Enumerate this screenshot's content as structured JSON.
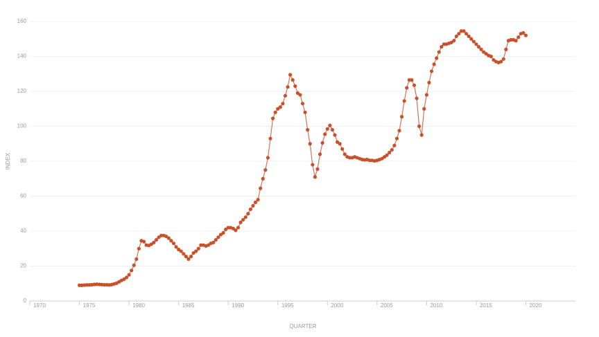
{
  "chart_data": {
    "type": "line",
    "title_x": "QUARTER",
    "ylabel": "INDEX",
    "x": [
      1975,
      1975.25,
      1975.5,
      1975.75,
      1976,
      1976.25,
      1976.5,
      1976.75,
      1977,
      1977.25,
      1977.5,
      1977.75,
      1978,
      1978.25,
      1978.5,
      1978.75,
      1979,
      1979.25,
      1979.5,
      1979.75,
      1980,
      1980.25,
      1980.5,
      1980.75,
      1981,
      1981.25,
      1981.5,
      1981.75,
      1982,
      1982.25,
      1982.5,
      1982.75,
      1983,
      1983.25,
      1983.5,
      1983.75,
      1984,
      1984.25,
      1984.5,
      1984.75,
      1985,
      1985.25,
      1985.5,
      1985.75,
      1986,
      1986.25,
      1986.5,
      1986.75,
      1987,
      1987.25,
      1987.5,
      1987.75,
      1988,
      1988.25,
      1988.5,
      1988.75,
      1989,
      1989.25,
      1989.5,
      1989.75,
      1990,
      1990.25,
      1990.5,
      1990.75,
      1991,
      1991.25,
      1991.5,
      1991.75,
      1992,
      1992.25,
      1992.5,
      1992.75,
      1993,
      1993.25,
      1993.5,
      1993.75,
      1994,
      1994.25,
      1994.5,
      1994.75,
      1995,
      1995.25,
      1995.5,
      1995.75,
      1996,
      1996.25,
      1996.5,
      1996.75,
      1997,
      1997.25,
      1997.5,
      1997.75,
      1998,
      1998.25,
      1998.5,
      1998.75,
      1999,
      1999.25,
      1999.5,
      1999.75,
      2000,
      2000.25,
      2000.5,
      2000.75,
      2001,
      2001.25,
      2001.5,
      2001.75,
      2002,
      2002.25,
      2002.5,
      2002.75,
      2003,
      2003.25,
      2003.5,
      2003.75,
      2004,
      2004.25,
      2004.5,
      2004.75,
      2005,
      2005.25,
      2005.5,
      2005.75,
      2006,
      2006.25,
      2006.5,
      2006.75,
      2007,
      2007.25,
      2007.5,
      2007.75,
      2008,
      2008.25,
      2008.5,
      2008.75,
      2009,
      2009.25,
      2009.5,
      2009.75,
      2010,
      2010.25,
      2010.5,
      2010.75,
      2011,
      2011.25,
      2011.5,
      2011.75,
      2012,
      2012.25,
      2012.5,
      2012.75,
      2013,
      2013.25,
      2013.5,
      2013.75,
      2014,
      2014.25,
      2014.5,
      2014.75,
      2015,
      2015.25,
      2015.5,
      2015.75,
      2016,
      2016.25,
      2016.5,
      2016.75,
      2017,
      2017.25,
      2017.5,
      2017.75,
      2018,
      2018.25,
      2018.5,
      2018.75,
      2019,
      2019.25,
      2019.5,
      2019.75,
      2020
    ],
    "series": [
      {
        "name": "INDEX",
        "color": "#c8502a",
        "values": [
          9,
          9,
          9.1,
          9.2,
          9.2,
          9.3,
          9.5,
          9.6,
          9.5,
          9.4,
          9.3,
          9.3,
          9.2,
          9.4,
          9.8,
          10.2,
          11,
          11.8,
          12.5,
          13.5,
          15,
          17.5,
          20.5,
          24,
          30,
          34.5,
          34,
          32,
          31.8,
          32.5,
          33.5,
          35,
          36.5,
          37.5,
          37.5,
          37,
          36,
          34.5,
          33,
          31,
          29.5,
          28.5,
          27,
          25.5,
          24,
          25.5,
          27.5,
          28.5,
          30,
          32,
          32,
          31.5,
          32,
          33,
          33.5,
          35,
          36.5,
          38,
          39,
          41,
          42,
          42,
          41.5,
          40.5,
          42,
          45,
          46.5,
          48,
          50,
          52.5,
          54.5,
          56.5,
          58,
          64.5,
          70,
          75,
          82,
          93,
          104.5,
          108,
          110,
          111,
          113,
          117.5,
          122.5,
          129.5,
          126.5,
          123,
          119,
          118,
          113,
          108,
          98,
          90,
          78,
          71,
          75.5,
          84,
          90.5,
          95.5,
          98.5,
          100.5,
          98,
          95,
          91,
          90,
          87,
          84,
          82.5,
          82,
          82,
          82.5,
          82,
          81.5,
          81,
          80.8,
          81,
          80.5,
          80.5,
          80.2,
          80.5,
          81,
          81.5,
          82.5,
          83.5,
          85,
          86.5,
          89,
          93,
          97.5,
          105.5,
          114.5,
          122,
          126.5,
          126.5,
          123.5,
          116,
          100,
          95,
          110,
          118,
          125,
          131.5,
          135.5,
          139,
          142.5,
          145.5,
          147,
          147,
          147.5,
          148,
          149,
          151.5,
          153,
          154.5,
          154.5,
          153,
          151.5,
          150,
          148.5,
          147,
          145.5,
          144,
          142.5,
          141.5,
          140.5,
          140,
          138,
          137,
          136.5,
          137,
          138.5,
          144,
          149,
          149.5,
          149.5,
          149,
          151,
          153,
          153.5,
          152
        ]
      }
    ],
    "xlim": [
      1970,
      2025
    ],
    "xticks": [
      1970,
      1975,
      1980,
      1985,
      1990,
      1995,
      2000,
      2005,
      2010,
      2015,
      2020
    ],
    "ylim": [
      0,
      160
    ],
    "yticks": [
      0,
      20,
      40,
      60,
      80,
      100,
      120,
      140,
      160
    ],
    "grid": true
  }
}
